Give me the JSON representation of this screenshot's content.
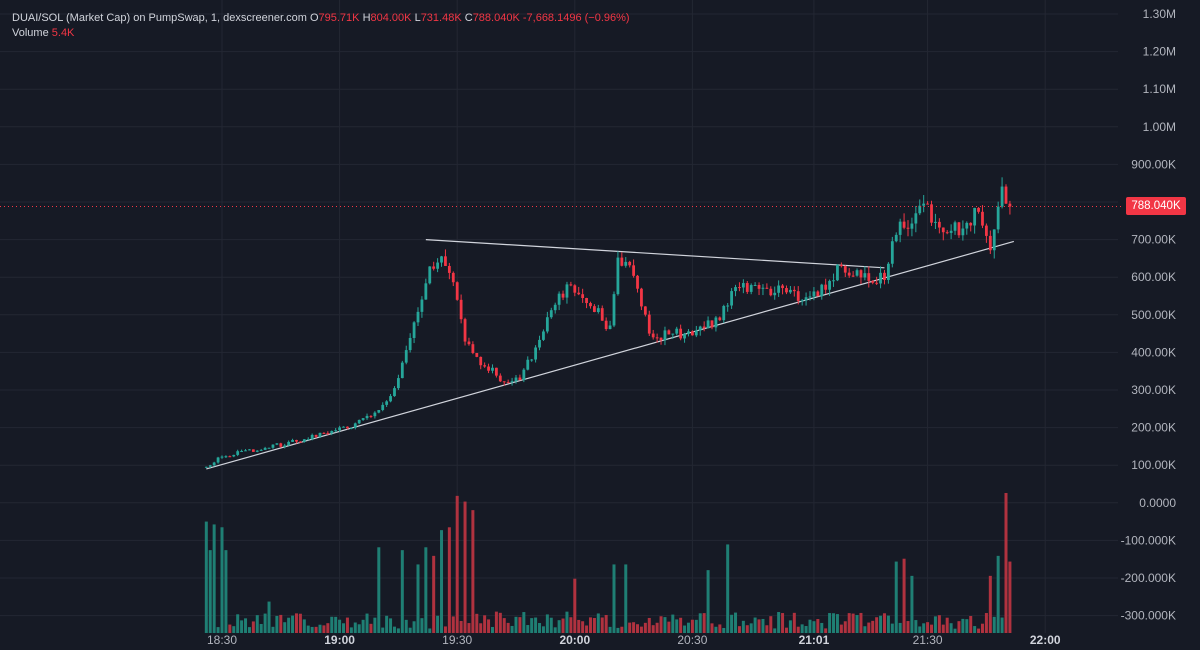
{
  "legend": {
    "symbol": "DUAI/SOL (Market Cap) on PumpSwap, 1, dexscreener.com",
    "o_label": "O",
    "o_value": "795.71K",
    "h_label": "H",
    "h_value": "804.00K",
    "l_label": "L",
    "l_value": "731.48K",
    "c_label": "C",
    "c_value": "788.040K",
    "change": "-7,668.1496 (−0.96%)",
    "volume_label": "Volume",
    "volume_value": "5.4K"
  },
  "last_price_label": "788.040K",
  "colors": {
    "up": "#26a69a",
    "down": "#f23645",
    "up_volume": "#1f7f74",
    "down_volume": "#b0323f",
    "background": "#161a25",
    "trendline": "#d1d4dc"
  },
  "chart_data": {
    "type": "candlestick",
    "price_axis": {
      "ticks": [
        1300000,
        1200000,
        1100000,
        1000000,
        900000,
        800000,
        700000,
        600000,
        500000,
        400000,
        300000,
        200000,
        100000,
        0,
        -100000,
        -200000,
        -300000
      ],
      "tick_labels": [
        "1.30M",
        "1.20M",
        "1.10M",
        "1.00M",
        "900.00K",
        "800.00K",
        "700.00K",
        "600.00K",
        "500.00K",
        "400.00K",
        "300.00K",
        "200.00K",
        "100.00K",
        "0.0000",
        "-100.000K",
        "-200.000K",
        "-300.000K"
      ]
    },
    "time_axis": {
      "ticks": [
        {
          "label": "18:30",
          "bold": false,
          "minute": 0
        },
        {
          "label": "19:00",
          "bold": true,
          "minute": 30
        },
        {
          "label": "19:30",
          "bold": false,
          "minute": 60
        },
        {
          "label": "20:00",
          "bold": true,
          "minute": 90
        },
        {
          "label": "20:30",
          "bold": false,
          "minute": 120
        },
        {
          "label": "21:01",
          "bold": true,
          "minute": 151
        },
        {
          "label": "21:30",
          "bold": false,
          "minute": 180
        },
        {
          "label": "22:00",
          "bold": true,
          "minute": 210
        }
      ],
      "first_candle_minute": -4,
      "last_candle_minute": 201
    },
    "last_price": 788040,
    "price_anchors": [
      {
        "m": -4,
        "v": 95000
      },
      {
        "m": 0,
        "v": 125000
      },
      {
        "m": 6,
        "v": 135000
      },
      {
        "m": 15,
        "v": 155000
      },
      {
        "m": 25,
        "v": 180000
      },
      {
        "m": 33,
        "v": 205000
      },
      {
        "m": 40,
        "v": 240000
      },
      {
        "m": 44,
        "v": 300000
      },
      {
        "m": 47,
        "v": 400000
      },
      {
        "m": 50,
        "v": 500000
      },
      {
        "m": 53,
        "v": 620000
      },
      {
        "m": 56,
        "v": 640000
      },
      {
        "m": 59,
        "v": 580000
      },
      {
        "m": 62,
        "v": 440000
      },
      {
        "m": 65,
        "v": 380000
      },
      {
        "m": 68,
        "v": 360000
      },
      {
        "m": 72,
        "v": 320000
      },
      {
        "m": 76,
        "v": 330000
      },
      {
        "m": 80,
        "v": 410000
      },
      {
        "m": 84,
        "v": 510000
      },
      {
        "m": 88,
        "v": 580000
      },
      {
        "m": 92,
        "v": 530000
      },
      {
        "m": 95,
        "v": 520000
      },
      {
        "m": 99,
        "v": 460000
      },
      {
        "m": 101,
        "v": 640000
      },
      {
        "m": 104,
        "v": 620000
      },
      {
        "m": 107,
        "v": 520000
      },
      {
        "m": 110,
        "v": 430000
      },
      {
        "m": 114,
        "v": 460000
      },
      {
        "m": 118,
        "v": 440000
      },
      {
        "m": 122,
        "v": 470000
      },
      {
        "m": 126,
        "v": 480000
      },
      {
        "m": 130,
        "v": 550000
      },
      {
        "m": 133,
        "v": 580000
      },
      {
        "m": 138,
        "v": 560000
      },
      {
        "m": 143,
        "v": 565000
      },
      {
        "m": 148,
        "v": 540000
      },
      {
        "m": 152,
        "v": 560000
      },
      {
        "m": 157,
        "v": 620000
      },
      {
        "m": 162,
        "v": 620000
      },
      {
        "m": 166,
        "v": 600000
      },
      {
        "m": 169,
        "v": 600000
      },
      {
        "m": 172,
        "v": 720000
      },
      {
        "m": 176,
        "v": 760000
      },
      {
        "m": 179,
        "v": 800000
      },
      {
        "m": 183,
        "v": 720000
      },
      {
        "m": 188,
        "v": 730000
      },
      {
        "m": 193,
        "v": 780000
      },
      {
        "m": 196,
        "v": 690000
      },
      {
        "m": 199,
        "v": 830000
      },
      {
        "m": 201,
        "v": 788040
      }
    ],
    "volume_spikes": [
      {
        "m": -4,
        "v": 390000
      },
      {
        "m": -3,
        "v": 290000
      },
      {
        "m": -2,
        "v": 380000
      },
      {
        "m": 0,
        "v": 370000
      },
      {
        "m": 1,
        "v": 290000
      },
      {
        "m": 12,
        "v": 110000
      },
      {
        "m": 40,
        "v": 300000
      },
      {
        "m": 46,
        "v": 290000
      },
      {
        "m": 50,
        "v": 240000
      },
      {
        "m": 52,
        "v": 300000
      },
      {
        "m": 54,
        "v": 270000
      },
      {
        "m": 56,
        "v": 360000
      },
      {
        "m": 58,
        "v": 370000
      },
      {
        "m": 60,
        "v": 480000
      },
      {
        "m": 62,
        "v": 460000
      },
      {
        "m": 64,
        "v": 430000
      },
      {
        "m": 90,
        "v": 190000
      },
      {
        "m": 100,
        "v": 240000
      },
      {
        "m": 103,
        "v": 240000
      },
      {
        "m": 124,
        "v": 220000
      },
      {
        "m": 129,
        "v": 310000
      },
      {
        "m": 172,
        "v": 250000
      },
      {
        "m": 174,
        "v": 260000
      },
      {
        "m": 176,
        "v": 200000
      },
      {
        "m": 196,
        "v": 200000
      },
      {
        "m": 198,
        "v": 270000
      },
      {
        "m": 200,
        "v": 490000
      },
      {
        "m": 201,
        "v": 250000
      },
      {
        "m": 202,
        "v": 180000
      }
    ],
    "trendlines": [
      {
        "points": [
          {
            "m": -4,
            "v": 90000
          },
          {
            "m": 202,
            "v": 695000
          }
        ]
      },
      {
        "points": [
          {
            "m": 52,
            "v": 700000
          },
          {
            "m": 169,
            "v": 625000
          }
        ]
      }
    ]
  }
}
